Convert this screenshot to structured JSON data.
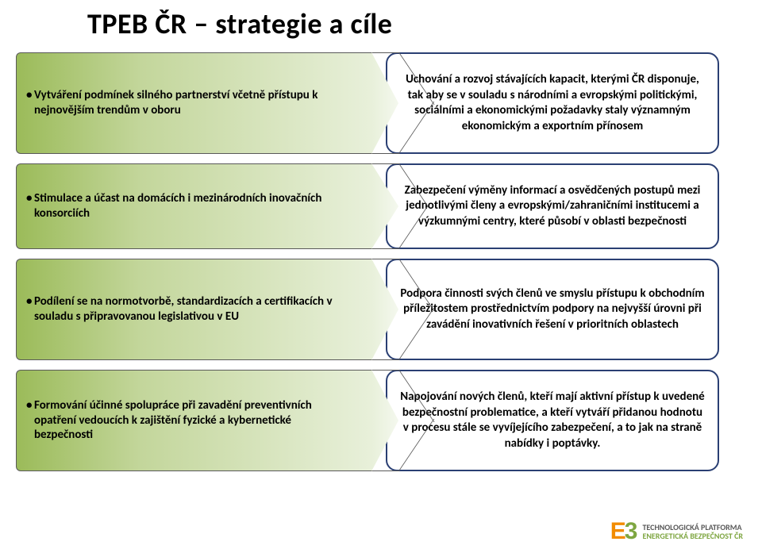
{
  "title": "TPEB  ČR – strategie a cíle",
  "accent_border": "#2a3f73",
  "arrow_gradient_from": "#9bbb59",
  "arrow_gradient_to": "#f4f8ee",
  "rows": [
    {
      "left": "Vytváření podmínek silného partnerství včetně přístupu k nejnovějším trendům v oboru",
      "right": "Uchování a rozvoj stávajících kapacit, kterými ČR disponuje, tak aby se v souladu s národními a evropskými politickými, sociálními a ekonomickými požadavky staly významným ekonomickým a exportním přínosem"
    },
    {
      "left": "Stimulace a účast na domácích i mezinárodních inovačních konsorciích",
      "right": "Zabezpečení výměny informací a osvědčených postupů mezi jednotlivými členy a evropskými/zahraničními institucemi a výzkumnými centry, které působí v oblasti bezpečnosti"
    },
    {
      "left": "Podílení se na normotvorbě, standardizacích a certifikacích v souladu s připravovanou legislativou v EU",
      "right": "Podpora činnosti svých členů ve smyslu přístupu k obchodním příležitostem prostřednictvím podpory na nejvyšší úrovni při zavádění inovativních řešení v prioritních oblastech"
    },
    {
      "left": "Formování účinné spolupráce  při  zavadění preventivních opatření vedoucích k zajištění fyzické a kybernetické bezpečnosti",
      "right": "Napojování nových členů, kteří mají aktivní přístup k uvedené bezpečnostní problematice, a kteří vytváří přidanou hodnotu v procesu stále se vyvíjejícího zabezpečení, a to jak na straně nabídky i poptávky."
    }
  ],
  "footer": {
    "mark": "E3",
    "line1": "TECHNOLOGICKÁ PLATFORMA",
    "line2": "ENERGETICKÁ BEZPEČNOST ČR"
  }
}
